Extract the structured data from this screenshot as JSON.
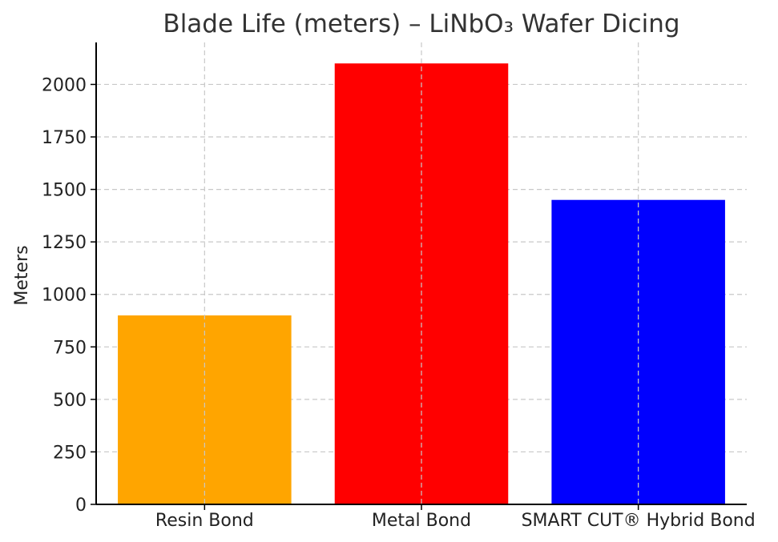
{
  "chart_data": {
    "type": "bar",
    "title": "Blade Life (meters) – LiNbO₃ Wafer Dicing",
    "xlabel": "",
    "ylabel": "Meters",
    "categories": [
      "Resin Bond",
      "Metal Bond",
      "SMART CUT® Hybrid Bond"
    ],
    "values": [
      900,
      2100,
      1450
    ],
    "colors": [
      "#FFA500",
      "#FF0000",
      "#0000FF"
    ],
    "ylim": [
      0,
      2200
    ],
    "yticks": [
      0,
      250,
      500,
      750,
      1000,
      1250,
      1500,
      1750,
      2000
    ],
    "grid": true
  }
}
